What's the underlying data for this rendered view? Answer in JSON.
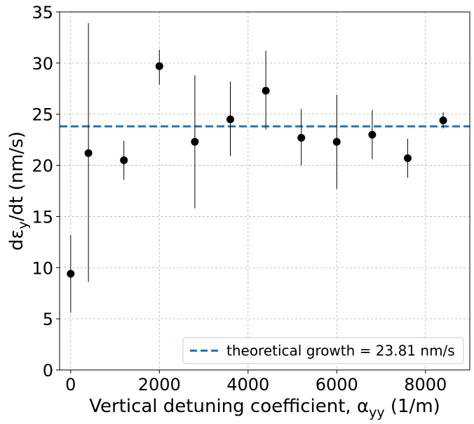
{
  "chart_data": {
    "type": "scatter",
    "title": "",
    "xlabel_main": "Vertical detuning coefficient, α",
    "xlabel_sub": "yy",
    "xlabel_unit": " (1/m)",
    "ylabel_main": "dε",
    "ylabel_sub": "y",
    "ylabel_unit": "/dt (nm/s)",
    "xlim": [
      -250,
      9000
    ],
    "ylim": [
      0,
      35
    ],
    "xticks": [
      0,
      2000,
      4000,
      6000,
      8000
    ],
    "yticks": [
      0,
      5,
      10,
      15,
      20,
      25,
      30,
      35
    ],
    "grid": true,
    "legend_position": "lower-right",
    "marker_color": "#000000",
    "line_color": "#1f77b4",
    "points": [
      {
        "x": 0,
        "y": 9.4,
        "ylow": 5.6,
        "yhigh": 13.2
      },
      {
        "x": 400,
        "y": 21.2,
        "ylow": 8.6,
        "yhigh": 33.9
      },
      {
        "x": 1200,
        "y": 20.5,
        "ylow": 18.6,
        "yhigh": 22.4
      },
      {
        "x": 2000,
        "y": 29.7,
        "ylow": 27.9,
        "yhigh": 31.3
      },
      {
        "x": 2800,
        "y": 22.3,
        "ylow": 15.8,
        "yhigh": 28.8
      },
      {
        "x": 3600,
        "y": 24.5,
        "ylow": 20.9,
        "yhigh": 28.2
      },
      {
        "x": 4400,
        "y": 27.3,
        "ylow": 23.5,
        "yhigh": 31.2
      },
      {
        "x": 5200,
        "y": 22.7,
        "ylow": 20.0,
        "yhigh": 25.5
      },
      {
        "x": 6000,
        "y": 22.3,
        "ylow": 17.7,
        "yhigh": 26.9
      },
      {
        "x": 6800,
        "y": 23.0,
        "ylow": 20.6,
        "yhigh": 25.4
      },
      {
        "x": 7600,
        "y": 20.7,
        "ylow": 18.8,
        "yhigh": 22.6
      },
      {
        "x": 8400,
        "y": 24.4,
        "ylow": 23.6,
        "yhigh": 25.2
      }
    ],
    "reference_line": {
      "y": 23.81,
      "label": "theoretical growth = 23.81 nm/s"
    }
  }
}
